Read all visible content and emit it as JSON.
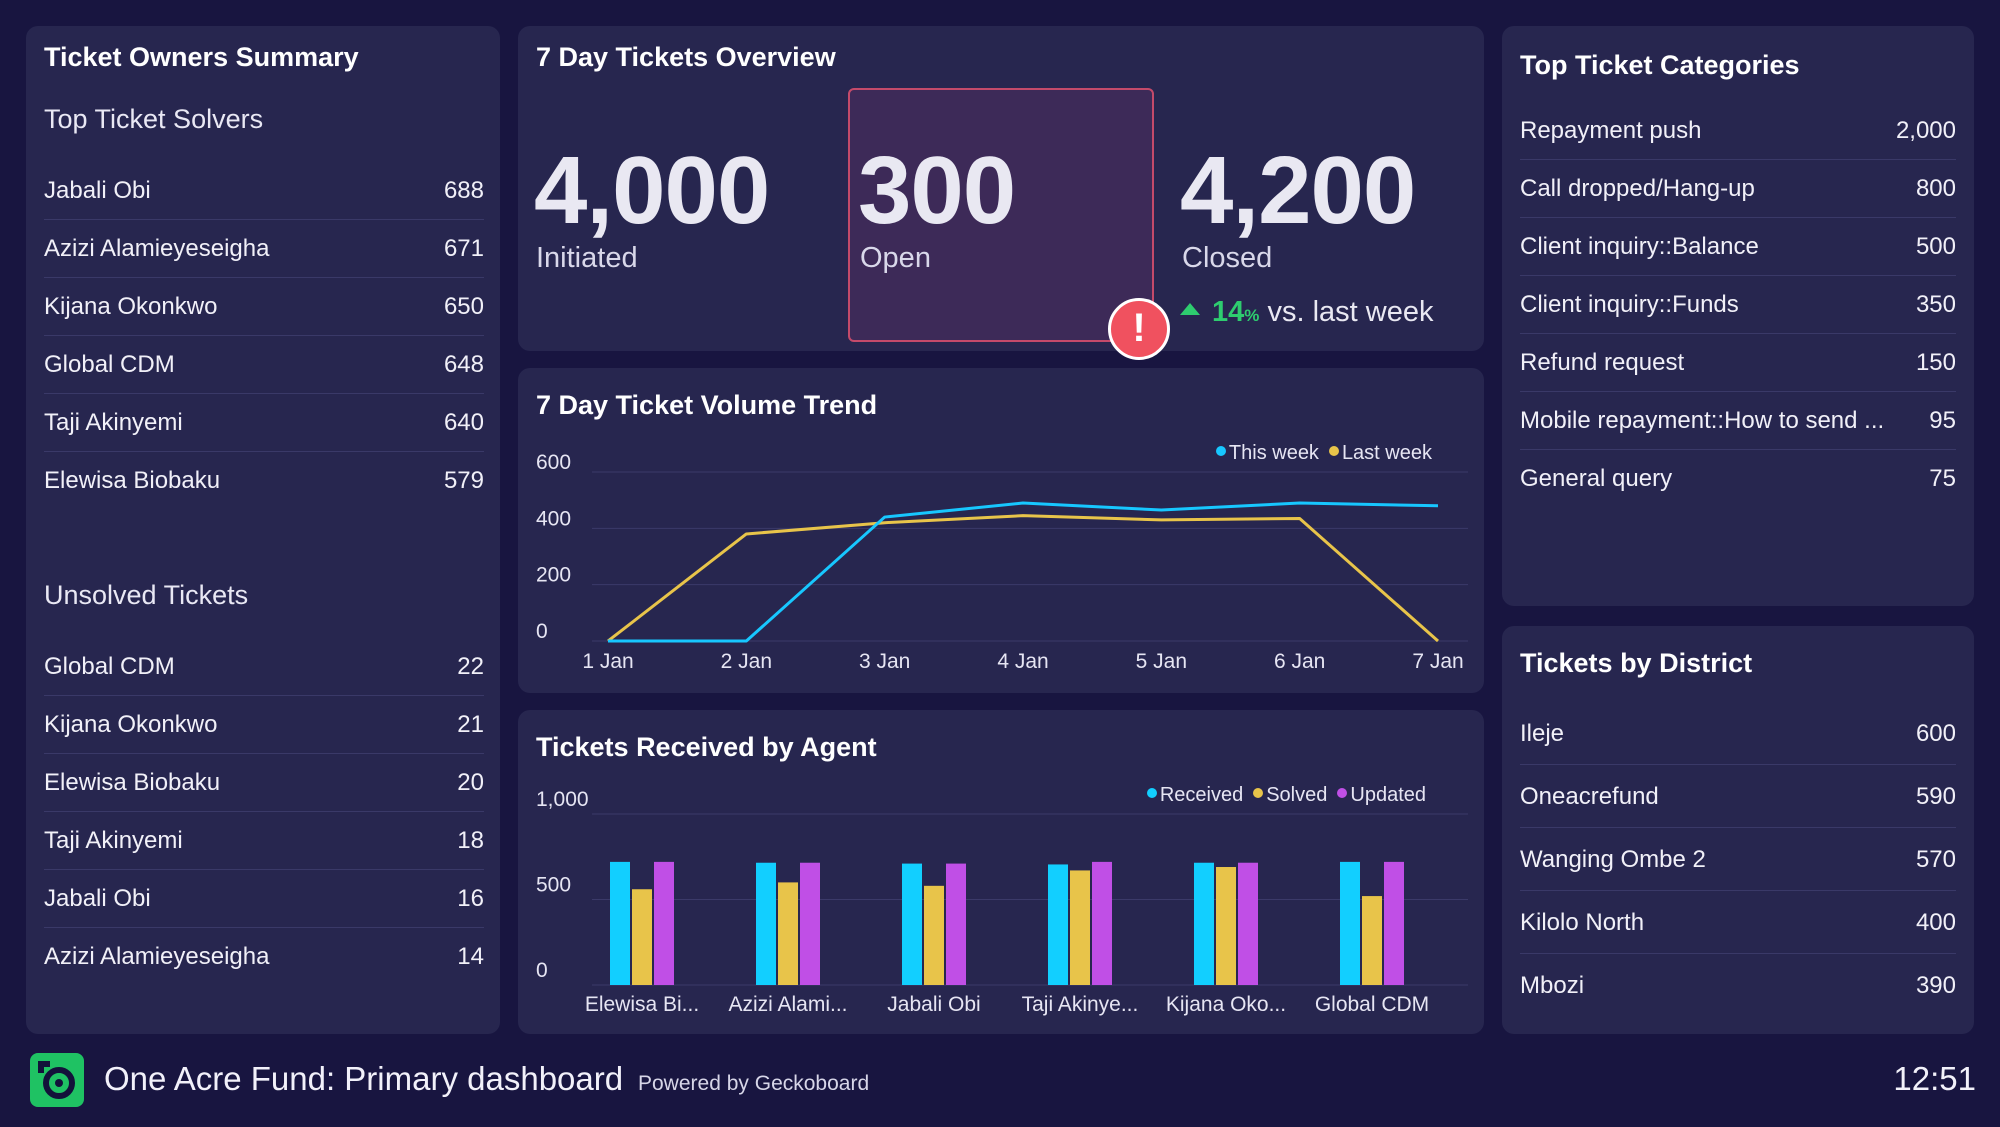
{
  "owners": {
    "title": "Ticket Owners Summary",
    "solvers_title": "Top Ticket Solvers",
    "solvers": [
      {
        "name": "Jabali Obi",
        "value": "688"
      },
      {
        "name": "Azizi Alamieyeseigha",
        "value": "671"
      },
      {
        "name": "Kijana Okonkwo",
        "value": "650"
      },
      {
        "name": "Global CDM",
        "value": "648"
      },
      {
        "name": "Taji Akinyemi",
        "value": "640"
      },
      {
        "name": "Elewisa Biobaku",
        "value": "579"
      }
    ],
    "unsolved_title": "Unsolved Tickets",
    "unsolved": [
      {
        "name": "Global CDM",
        "value": "22"
      },
      {
        "name": "Kijana Okonkwo",
        "value": "21"
      },
      {
        "name": "Elewisa Biobaku",
        "value": "20"
      },
      {
        "name": "Taji Akinyemi",
        "value": "18"
      },
      {
        "name": "Jabali Obi",
        "value": "16"
      },
      {
        "name": "Azizi Alamieyeseigha",
        "value": "14"
      }
    ]
  },
  "overview": {
    "title": "7 Day Tickets Overview",
    "initiated_value": "4,000",
    "initiated_label": "Initiated",
    "open_value": "300",
    "open_label": "Open",
    "closed_value": "4,200",
    "closed_label": "Closed",
    "alert_glyph": "!",
    "trend_pct": "14",
    "trend_pct_unit": "%",
    "trend_text": "vs. last week",
    "trend_color": "#2ecc6f",
    "alert_color": "#f0515f"
  },
  "volume": {
    "title": "7 Day Ticket Volume Trend",
    "legend": [
      {
        "label": "This week",
        "color": "#17c7ff"
      },
      {
        "label": "Last week",
        "color": "#e8c44a"
      }
    ]
  },
  "agent": {
    "title": "Tickets Received by Agent",
    "legend": [
      {
        "label": "Received",
        "color": "#12cfff"
      },
      {
        "label": "Solved",
        "color": "#e8c44a"
      },
      {
        "label": "Updated",
        "color": "#c04fe6"
      }
    ]
  },
  "categories": {
    "title": "Top Ticket Categories",
    "items": [
      {
        "name": "Repayment push",
        "value": "2,000"
      },
      {
        "name": "Call dropped/Hang-up",
        "value": "800"
      },
      {
        "name": "Client inquiry::Balance",
        "value": "500"
      },
      {
        "name": "Client inquiry::Funds",
        "value": "350"
      },
      {
        "name": "Refund request",
        "value": "150"
      },
      {
        "name": "Mobile repayment::How to send ...",
        "value": "95"
      },
      {
        "name": "General query",
        "value": "75"
      }
    ]
  },
  "district": {
    "title": "Tickets by District",
    "items": [
      {
        "name": "Ileje",
        "value": "600"
      },
      {
        "name": "Oneacrefund",
        "value": "590"
      },
      {
        "name": "Wanging Ombe 2",
        "value": "570"
      },
      {
        "name": "Kilolo North",
        "value": "400"
      },
      {
        "name": "Mbozi",
        "value": "390"
      }
    ]
  },
  "footer": {
    "title": "One Acre Fund: Primary dashboard",
    "powered": "Powered by Geckoboard",
    "time": "12:51",
    "logo_icon": "geckoboard-swirl-icon"
  },
  "chart_data": [
    {
      "type": "line",
      "title": "7 Day Ticket Volume Trend",
      "x": [
        "1 Jan",
        "2 Jan",
        "3 Jan",
        "4 Jan",
        "5 Jan",
        "6 Jan",
        "7 Jan"
      ],
      "ylim": [
        0,
        600
      ],
      "yticks": [
        "0",
        "200",
        "400",
        "600"
      ],
      "series": [
        {
          "name": "This week",
          "color": "#17c7ff",
          "values": [
            0,
            0,
            440,
            490,
            465,
            490,
            480
          ]
        },
        {
          "name": "Last week",
          "color": "#e8c44a",
          "values": [
            0,
            380,
            420,
            445,
            430,
            435,
            0
          ]
        }
      ],
      "grid": true,
      "legend": "top-right"
    },
    {
      "type": "bar",
      "title": "Tickets Received by Agent",
      "categories": [
        "Elewisa Bi...",
        "Azizi Alami...",
        "Jabali Obi",
        "Taji Akinye...",
        "Kijana Oko...",
        "Global CDM"
      ],
      "ylim": [
        0,
        1000
      ],
      "yticks": [
        "0",
        "500",
        "1,000"
      ],
      "series": [
        {
          "name": "Received",
          "color": "#12cfff",
          "values": [
            720,
            715,
            710,
            705,
            715,
            720
          ]
        },
        {
          "name": "Solved",
          "color": "#e8c44a",
          "values": [
            560,
            600,
            580,
            670,
            690,
            520
          ]
        },
        {
          "name": "Updated",
          "color": "#c04fe6",
          "values": [
            720,
            715,
            710,
            720,
            715,
            720
          ]
        }
      ],
      "grid": true,
      "legend": "top-right"
    }
  ]
}
